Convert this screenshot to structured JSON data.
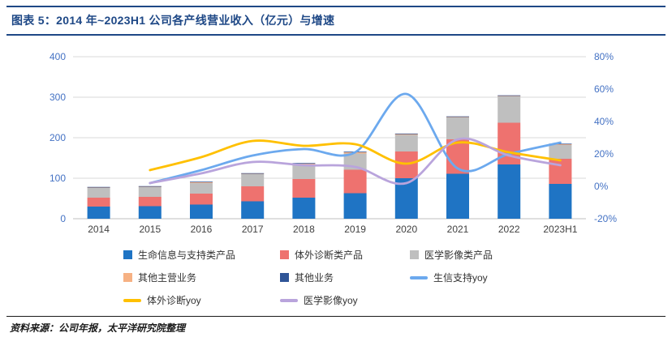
{
  "header": {
    "title": "图表 5：2014 年~2023H1 公司各产线营业收入（亿元）与增速"
  },
  "footer": {
    "source": "资料来源：公司年报，太平洋研究院整理"
  },
  "colors": {
    "accent_navy": "#1E4886",
    "grid": "#D9D9D9",
    "axis_line": "#BFBFBF",
    "axis_label": "#4472C4",
    "category_label": "#404040"
  },
  "chart_data": {
    "type": "combo_stacked_bar_line",
    "title": "2014 年~2023H1 公司各产线营业收入（亿元）与增速",
    "categories": [
      "2014",
      "2015",
      "2016",
      "2017",
      "2018",
      "2019",
      "2020",
      "2021",
      "2022",
      "2023H1"
    ],
    "bar_series": [
      {
        "name": "生命信息与支持类产品",
        "color": "#1F74C4",
        "values": [
          30,
          31,
          35,
          43,
          52,
          63,
          100,
          111,
          134,
          86
        ]
      },
      {
        "name": "体外诊断类产品",
        "color": "#EE726F",
        "values": [
          22,
          23,
          27,
          37,
          46,
          58,
          66,
          85,
          103,
          62
        ]
      },
      {
        "name": "医学影像类产品",
        "color": "#BFBFBF",
        "values": [
          24,
          24,
          26,
          30,
          36,
          40,
          41,
          54,
          65,
          34
        ]
      },
      {
        "name": "其他主营业务",
        "color": "#F6B183",
        "values": [
          2,
          2,
          3,
          2,
          3,
          4,
          3,
          2,
          2,
          3
        ]
      },
      {
        "name": "其他业务",
        "color": "#2F5597",
        "values": [
          0.5,
          0.5,
          0.5,
          0.5,
          0.5,
          0.6,
          0.3,
          0.7,
          0.7,
          0.3
        ]
      }
    ],
    "line_series": [
      {
        "name": "生信支持yoy",
        "color": "#6CA9EE",
        "values": [
          null,
          2,
          10,
          19,
          23,
          21,
          57,
          11,
          20,
          27
        ]
      },
      {
        "name": "体外诊断yoy",
        "color": "#FFC000",
        "values": [
          null,
          10,
          18,
          28,
          25,
          26,
          14,
          27,
          21,
          16
        ]
      },
      {
        "name": "医学影像yoy",
        "color": "#B9A4DC",
        "values": [
          null,
          2,
          8,
          15,
          13,
          12,
          2,
          29,
          19,
          13
        ]
      }
    ],
    "left_axis": {
      "min": 0,
      "max": 400,
      "ticks": [
        0,
        100,
        200,
        300,
        400
      ]
    },
    "right_axis": {
      "min": -20,
      "max": 80,
      "ticks": [
        -20,
        0,
        20,
        40,
        60,
        80
      ],
      "suffix": "%"
    },
    "legend_position": "bottom",
    "grid": true,
    "grid_color": "#D9D9D9",
    "axis_line_color": "#BFBFBF",
    "axis_label_color": "#4472C4",
    "category_label_color": "#404040"
  }
}
